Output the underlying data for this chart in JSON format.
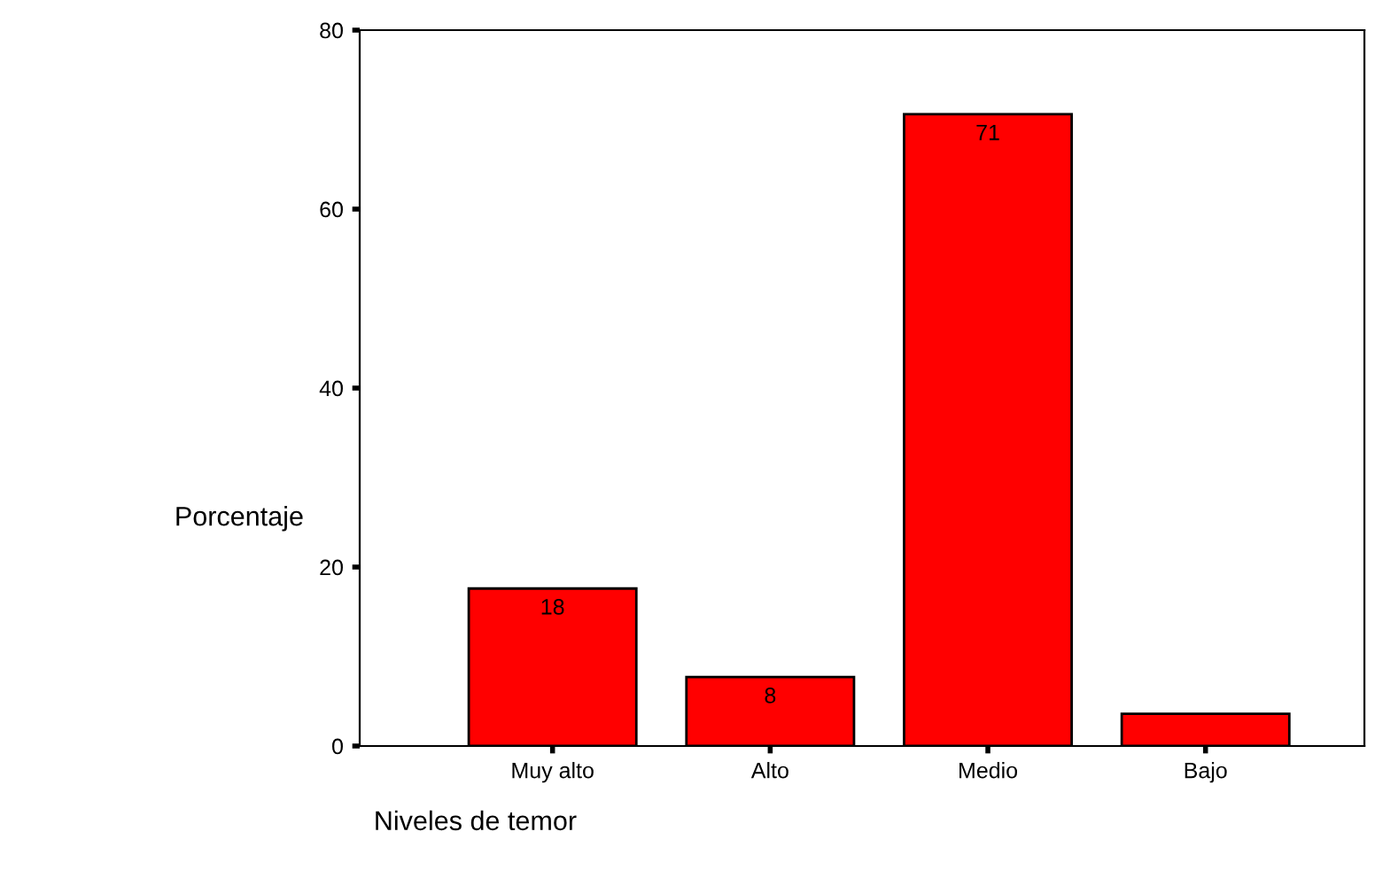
{
  "chart_data": {
    "type": "bar",
    "xlabel": "Niveles de temor",
    "ylabel": "Porcentaje",
    "categories": [
      "Muy alto",
      "Alto",
      "Medio",
      "Bajo"
    ],
    "values": [
      17.6,
      7.7,
      70.6,
      3.6
    ],
    "value_labels": [
      "18",
      "8",
      "71",
      null
    ],
    "color": "#ff0000",
    "ylim": [
      0,
      80
    ],
    "yticks": [
      0,
      20,
      40,
      60,
      80
    ],
    "grid": false,
    "legend": false
  }
}
